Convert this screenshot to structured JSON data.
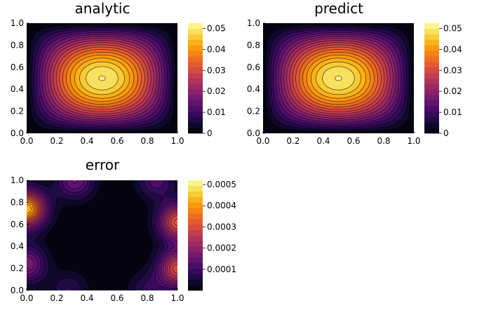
{
  "chart_data": [
    {
      "type": "heatmap",
      "subtype": "filled-contour",
      "title": "analytic",
      "colormap": "inferno",
      "x_ticks": [
        "0.0",
        "0.2",
        "0.4",
        "0.6",
        "0.8",
        "1.0"
      ],
      "y_ticks": [
        "0.0",
        "0.2",
        "0.4",
        "0.6",
        "0.8",
        "1.0"
      ],
      "xlim": [
        0,
        1
      ],
      "ylim": [
        0,
        1
      ],
      "colorbar": {
        "range": [
          0,
          0.0525
        ],
        "tick_values": [
          0,
          0.01,
          0.02,
          0.03,
          0.04,
          0.05
        ],
        "tick_labels": [
          "0",
          "0.01",
          "0.02",
          "0.03",
          "0.04",
          "0.05"
        ]
      },
      "field": {
        "formula": "0.05*sin(pi*x)*sin(pi*y)",
        "peak": 0.05,
        "peak_at": [
          0.5,
          0.5
        ]
      },
      "levels": 20,
      "grid": false
    },
    {
      "type": "heatmap",
      "subtype": "filled-contour",
      "title": "predict",
      "colormap": "inferno",
      "x_ticks": [
        "0.0",
        "0.2",
        "0.4",
        "0.6",
        "0.8",
        "1.0"
      ],
      "y_ticks": [
        "0.0",
        "0.2",
        "0.4",
        "0.6",
        "0.8",
        "1.0"
      ],
      "xlim": [
        0,
        1
      ],
      "ylim": [
        0,
        1
      ],
      "colorbar": {
        "range": [
          0,
          0.0525
        ],
        "tick_values": [
          0,
          0.01,
          0.02,
          0.03,
          0.04,
          0.05
        ],
        "tick_labels": [
          "0",
          "0.01",
          "0.02",
          "0.03",
          "0.04",
          "0.05"
        ]
      },
      "field": {
        "formula": "0.05*sin(pi*x)*sin(pi*y)",
        "peak": 0.05,
        "peak_at": [
          0.5,
          0.5
        ]
      },
      "levels": 20,
      "grid": false
    },
    {
      "type": "heatmap",
      "subtype": "filled-contour",
      "title": "error",
      "colormap": "inferno",
      "x_ticks": [
        "0.0",
        "0.2",
        "0.4",
        "0.6",
        "0.8",
        "1.0"
      ],
      "y_ticks": [
        "0.0",
        "0.2",
        "0.4",
        "0.6",
        "0.8",
        "1.0"
      ],
      "xlim": [
        0,
        1
      ],
      "ylim": [
        0,
        1
      ],
      "colorbar": {
        "range": [
          0,
          0.00052
        ],
        "tick_values": [
          0.0001,
          0.0002,
          0.0003,
          0.0004,
          0.0005
        ],
        "tick_labels": [
          "0.0001",
          "0.0002",
          "0.0003",
          "0.0004",
          "0.0005"
        ]
      },
      "error_peaks": [
        {
          "x": 0.0,
          "y": 0.74,
          "value": 0.00044
        },
        {
          "x": 1.0,
          "y": 0.62,
          "value": 0.00032
        },
        {
          "x": 1.0,
          "y": 0.2,
          "value": 0.0003
        },
        {
          "x": 0.0,
          "y": 0.24,
          "value": 0.00018
        },
        {
          "x": 0.32,
          "y": 1.0,
          "value": 0.00016
        },
        {
          "x": 0.86,
          "y": 1.0,
          "value": 0.00012
        },
        {
          "x": 0.28,
          "y": 0.0,
          "value": 8e-05
        },
        {
          "x": 0.8,
          "y": 0.0,
          "value": 8e-05
        }
      ],
      "levels": 20,
      "grid": false
    }
  ]
}
